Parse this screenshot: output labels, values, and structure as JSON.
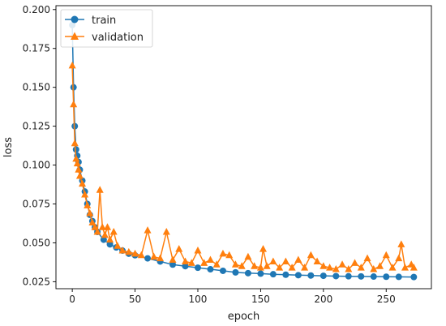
{
  "chart_data": {
    "type": "line",
    "title": "",
    "xlabel": "epoch",
    "ylabel": "loss",
    "xlim": [
      -13,
      286
    ],
    "ylim": [
      0.0205,
      0.2025
    ],
    "xticks": [
      0,
      50,
      100,
      150,
      200,
      250
    ],
    "xtick_labels": [
      "0",
      "50",
      "100",
      "150",
      "200",
      "250"
    ],
    "yticks": [
      0.025,
      0.05,
      0.075,
      0.1,
      0.125,
      0.15,
      0.175,
      0.2
    ],
    "ytick_labels": [
      "0.025",
      "0.050",
      "0.075",
      "0.100",
      "0.125",
      "0.150",
      "0.175",
      "0.200"
    ],
    "grid": false,
    "legend_position": "top-left",
    "series": [
      {
        "name": "train",
        "color": "#1f77b4",
        "marker": "circle",
        "x": [
          0,
          1,
          2,
          3,
          4,
          5,
          6,
          8,
          10,
          12,
          14,
          16,
          18,
          20,
          25,
          30,
          35,
          40,
          45,
          50,
          60,
          70,
          80,
          90,
          100,
          110,
          120,
          130,
          140,
          150,
          160,
          170,
          180,
          190,
          200,
          210,
          220,
          230,
          240,
          250,
          260,
          272
        ],
        "y": [
          0.19,
          0.15,
          0.125,
          0.11,
          0.106,
          0.102,
          0.097,
          0.09,
          0.083,
          0.075,
          0.068,
          0.064,
          0.06,
          0.057,
          0.052,
          0.049,
          0.047,
          0.045,
          0.043,
          0.042,
          0.04,
          0.038,
          0.036,
          0.035,
          0.034,
          0.033,
          0.032,
          0.031,
          0.0305,
          0.0302,
          0.0298,
          0.0295,
          0.0292,
          0.029,
          0.0288,
          0.0286,
          0.0285,
          0.0284,
          0.0283,
          0.0282,
          0.0281,
          0.028
        ]
      },
      {
        "name": "validation",
        "color": "#ff7f0e",
        "marker": "triangle",
        "x": [
          0,
          1,
          2,
          3,
          4,
          5,
          6,
          8,
          10,
          12,
          14,
          16,
          18,
          20,
          22,
          24,
          26,
          28,
          30,
          33,
          36,
          40,
          45,
          50,
          55,
          60,
          65,
          70,
          75,
          80,
          85,
          90,
          95,
          100,
          105,
          110,
          115,
          120,
          125,
          130,
          135,
          140,
          145,
          150,
          152,
          155,
          160,
          165,
          170,
          175,
          180,
          185,
          190,
          195,
          200,
          205,
          210,
          215,
          220,
          225,
          230,
          235,
          240,
          245,
          250,
          255,
          260,
          262,
          265,
          270,
          272
        ],
        "y": [
          0.164,
          0.139,
          0.114,
          0.104,
          0.101,
          0.097,
          0.093,
          0.088,
          0.081,
          0.074,
          0.069,
          0.063,
          0.06,
          0.057,
          0.084,
          0.06,
          0.055,
          0.06,
          0.052,
          0.057,
          0.048,
          0.045,
          0.044,
          0.043,
          0.042,
          0.058,
          0.041,
          0.04,
          0.057,
          0.039,
          0.046,
          0.038,
          0.037,
          0.045,
          0.037,
          0.039,
          0.036,
          0.043,
          0.042,
          0.036,
          0.035,
          0.041,
          0.035,
          0.034,
          0.046,
          0.035,
          0.038,
          0.034,
          0.038,
          0.034,
          0.039,
          0.034,
          0.042,
          0.038,
          0.035,
          0.034,
          0.033,
          0.036,
          0.033,
          0.037,
          0.034,
          0.04,
          0.033,
          0.035,
          0.042,
          0.034,
          0.04,
          0.049,
          0.034,
          0.036,
          0.034
        ]
      }
    ]
  }
}
